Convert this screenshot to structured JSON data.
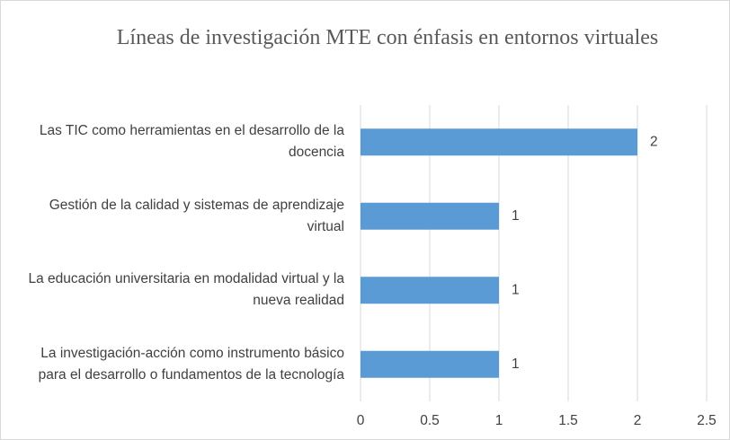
{
  "chart_data": {
    "type": "bar",
    "orientation": "horizontal",
    "title": "Líneas de investigación MTE con énfasis en entornos virtuales",
    "categories": [
      "Las TIC como herramientas en el desarrollo de la docencia",
      "Gestión de la calidad y sistemas de aprendizaje virtual",
      "La educación universitaria en modalidad virtual y la nueva realidad",
      "La investigación-acción como instrumento básico para el desarrollo o fundamentos de la tecnología"
    ],
    "values": [
      2,
      1,
      1,
      1
    ],
    "color": "#5b9bd5",
    "xlim": [
      0,
      2.5
    ],
    "xticks": [
      0,
      0.5,
      1,
      1.5,
      2,
      2.5
    ],
    "grid": true
  }
}
